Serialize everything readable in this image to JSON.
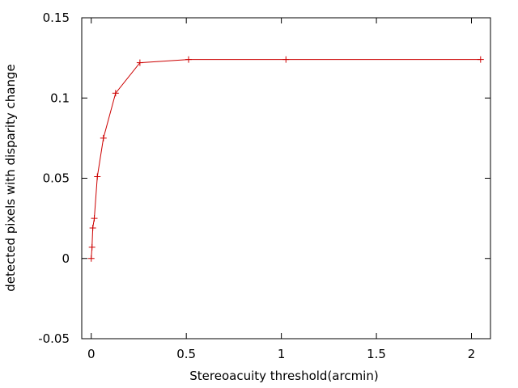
{
  "chart_data": {
    "type": "line",
    "title": "",
    "xlabel": "Stereoacuity threshold(arcmin)",
    "ylabel": "detected pixels with disparity change",
    "xlim": [
      -0.05,
      2.1
    ],
    "ylim": [
      -0.05,
      0.15
    ],
    "xticks": [
      0,
      0.5,
      1,
      1.5,
      2
    ],
    "xtick_labels": [
      "0",
      "0.5",
      "1",
      "1.5",
      "2"
    ],
    "yticks": [
      -0.05,
      0,
      0.05,
      0.1,
      0.15
    ],
    "ytick_labels": [
      "-0.05",
      "0",
      "0.05",
      "0.1",
      "0.15"
    ],
    "grid": false,
    "legend": "none",
    "series": [
      {
        "color": "#cc0000",
        "marker": "plus",
        "x": [
          0,
          0.004,
          0.008,
          0.016,
          0.032,
          0.064,
          0.128,
          0.256,
          0.512,
          1.024,
          2.048
        ],
        "y": [
          0.0,
          0.007,
          0.019,
          0.025,
          0.051,
          0.075,
          0.103,
          0.122,
          0.124,
          0.124,
          0.124
        ]
      }
    ]
  }
}
